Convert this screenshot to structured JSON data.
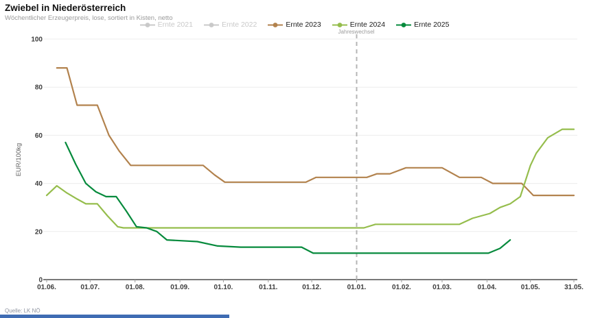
{
  "header": {
    "title": "Zwiebel in Niederösterreich",
    "subtitle": "Wöchentlicher Erzeugerpreis, lose, sortiert in Kisten, netto"
  },
  "source": "Quelle: LK NÖ",
  "colors": {
    "disabled_series": "#c9c9c9",
    "ernte_2023": "#b2824d",
    "ernte_2024": "#95bd4c",
    "ernte_2025": "#068a3c",
    "gridline": "#ececec",
    "axis_line": "#4d4d4d",
    "tick_label": "#3d3d3d",
    "dashed_line": "#b5b5b5",
    "bottom_bar": "#3f6cb3"
  },
  "chart_data": {
    "type": "line",
    "title": "Zwiebel in Niederösterreich",
    "subtitle": "Wöchentlicher Erzeugerpreis, lose, sortiert in Kisten, netto",
    "ylabel": "EUR/100kg",
    "xlabel": "",
    "ylim": [
      0,
      100
    ],
    "yticks": [
      0,
      20,
      40,
      60,
      80,
      100
    ],
    "grid": "horizontal",
    "legend_position": "top",
    "x_axis": {
      "unit": "days since 01.06.",
      "range": [
        0,
        364
      ],
      "tick_labels": [
        "01.06.",
        "01.07.",
        "01.08.",
        "01.09.",
        "01.10.",
        "01.11.",
        "01.12.",
        "01.01.",
        "01.02.",
        "01.03.",
        "01.04.",
        "01.05.",
        "31.05."
      ],
      "tick_days": [
        0,
        30,
        61,
        92,
        122,
        153,
        183,
        214,
        245,
        273,
        304,
        334,
        364
      ]
    },
    "annotation": {
      "label": "Jahreswechsel",
      "day": 214,
      "at_tick": "01.01.",
      "style": "vertical-dashed-line"
    },
    "series": [
      {
        "name": "Ernte 2021",
        "color": "#c9c9c9",
        "visible": false,
        "points": []
      },
      {
        "name": "Ernte 2022",
        "color": "#c9c9c9",
        "visible": false,
        "points": []
      },
      {
        "name": "Ernte 2023",
        "color": "#b2824d",
        "visible": true,
        "points": [
          [
            7,
            88
          ],
          [
            14,
            88
          ],
          [
            21,
            72.5
          ],
          [
            35,
            72.5
          ],
          [
            43,
            60
          ],
          [
            50,
            53.5
          ],
          [
            58,
            47.5
          ],
          [
            108,
            47.5
          ],
          [
            116,
            43.5
          ],
          [
            123,
            40.5
          ],
          [
            179,
            40.5
          ],
          [
            186,
            42.5
          ],
          [
            221,
            42.5
          ],
          [
            228,
            44
          ],
          [
            237,
            44
          ],
          [
            248,
            46.5
          ],
          [
            273,
            46.5
          ],
          [
            285,
            42.5
          ],
          [
            300,
            42.5
          ],
          [
            308,
            40
          ],
          [
            328,
            40
          ],
          [
            336,
            35
          ],
          [
            364,
            35
          ]
        ]
      },
      {
        "name": "Ernte 2024",
        "color": "#95bd4c",
        "visible": true,
        "points": [
          [
            0,
            35
          ],
          [
            7,
            39
          ],
          [
            14,
            36
          ],
          [
            21,
            33.5
          ],
          [
            27,
            31.5
          ],
          [
            35,
            31.5
          ],
          [
            42,
            26.5
          ],
          [
            49,
            22
          ],
          [
            53,
            21.5
          ],
          [
            219,
            21.5
          ],
          [
            227,
            23
          ],
          [
            285,
            23
          ],
          [
            294,
            25.5
          ],
          [
            306,
            27.5
          ],
          [
            313,
            30
          ],
          [
            320,
            31.5
          ],
          [
            327,
            34.5
          ],
          [
            334,
            47.5
          ],
          [
            338,
            52.5
          ],
          [
            346,
            59
          ],
          [
            356,
            62.5
          ],
          [
            364,
            62.5
          ]
        ]
      },
      {
        "name": "Ernte 2025",
        "color": "#068a3c",
        "visible": true,
        "points": [
          [
            13,
            57
          ],
          [
            20,
            48
          ],
          [
            27,
            40
          ],
          [
            34,
            36.5
          ],
          [
            41,
            34.5
          ],
          [
            48,
            34.5
          ],
          [
            55,
            28.5
          ],
          [
            62,
            22
          ],
          [
            69,
            21.5
          ],
          [
            76,
            20
          ],
          [
            83,
            16.5
          ],
          [
            104,
            15.8
          ],
          [
            118,
            14
          ],
          [
            134,
            13.5
          ],
          [
            176,
            13.5
          ],
          [
            184,
            11
          ],
          [
            305,
            11
          ],
          [
            313,
            13
          ],
          [
            320,
            16.5
          ]
        ]
      }
    ]
  }
}
